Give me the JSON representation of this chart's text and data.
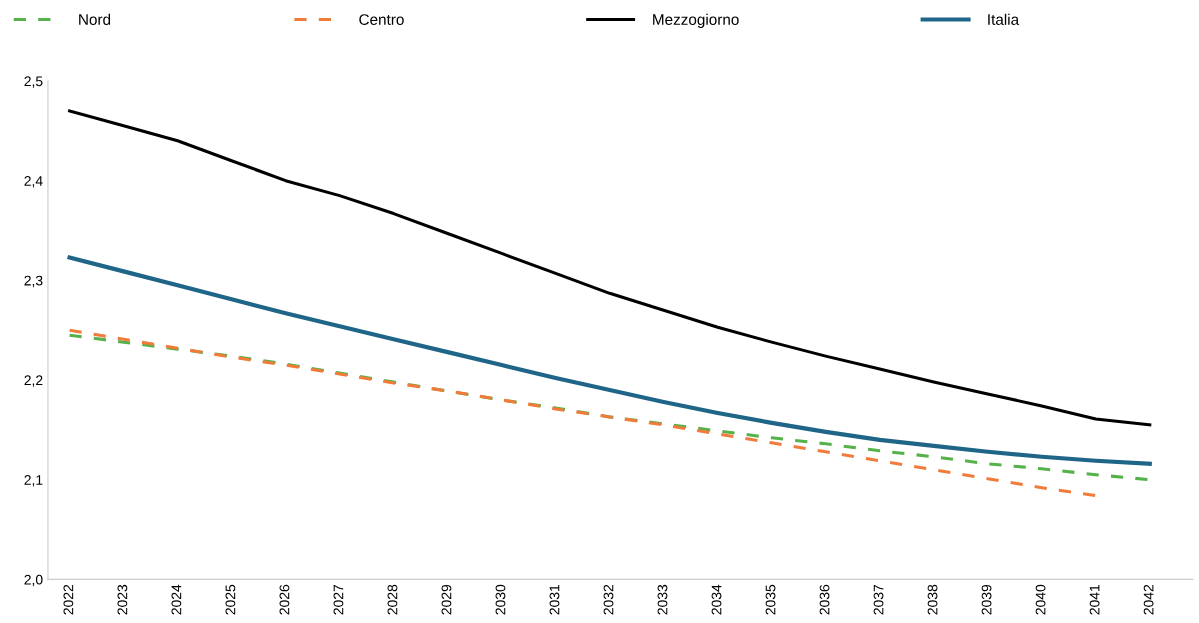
{
  "chart_data": {
    "type": "line",
    "categories": [
      "2022",
      "2023",
      "2024",
      "2025",
      "2026",
      "2027",
      "2028",
      "2029",
      "2030",
      "2031",
      "2032",
      "2033",
      "2034",
      "2035",
      "2036",
      "2037",
      "2038",
      "2039",
      "2040",
      "2041",
      "2042"
    ],
    "series": [
      {
        "name": "Nord",
        "color": "#55b24a",
        "line_style": "dashed",
        "values": [
          2.245,
          2.238,
          2.231,
          2.224,
          2.216,
          2.207,
          2.198,
          2.189,
          2.18,
          2.172,
          2.163,
          2.156,
          2.149,
          2.142,
          2.136,
          2.129,
          2.123,
          2.116,
          2.111,
          2.105,
          2.1
        ]
      },
      {
        "name": "Centro",
        "color": "#f07b3a",
        "line_style": "dashed",
        "values": [
          2.25,
          2.241,
          2.232,
          2.223,
          2.215,
          2.206,
          2.197,
          2.189,
          2.18,
          2.171,
          2.163,
          2.155,
          2.146,
          2.137,
          2.128,
          2.119,
          2.11,
          2.101,
          2.092,
          2.084,
          null
        ]
      },
      {
        "name": "Mezzogiorno",
        "color": "#000000",
        "line_style": "solid",
        "values": [
          2.47,
          2.455,
          2.44,
          2.42,
          2.4,
          2.385,
          2.367,
          2.347,
          2.327,
          2.307,
          2.287,
          2.27,
          2.253,
          2.238,
          2.224,
          2.211,
          2.198,
          2.186,
          2.174,
          2.161,
          2.155
        ]
      },
      {
        "name": "Italia",
        "color": "#1f6588",
        "line_style": "solid",
        "values": [
          2.323,
          2.309,
          2.295,
          2.281,
          2.267,
          2.254,
          2.241,
          2.228,
          2.215,
          2.202,
          2.19,
          2.178,
          2.167,
          2.157,
          2.148,
          2.14,
          2.134,
          2.128,
          2.123,
          2.119,
          2.116
        ]
      }
    ],
    "ylim": [
      2.0,
      2.5
    ],
    "yticks": [
      {
        "value": 2.0,
        "label": "2,0"
      },
      {
        "value": 2.1,
        "label": "2,1"
      },
      {
        "value": 2.2,
        "label": "2,2"
      },
      {
        "value": 2.3,
        "label": "2,3"
      },
      {
        "value": 2.4,
        "label": "2,4"
      },
      {
        "value": 2.5,
        "label": "2,5"
      }
    ],
    "grid": false,
    "legend": "top left",
    "marker": "none"
  }
}
